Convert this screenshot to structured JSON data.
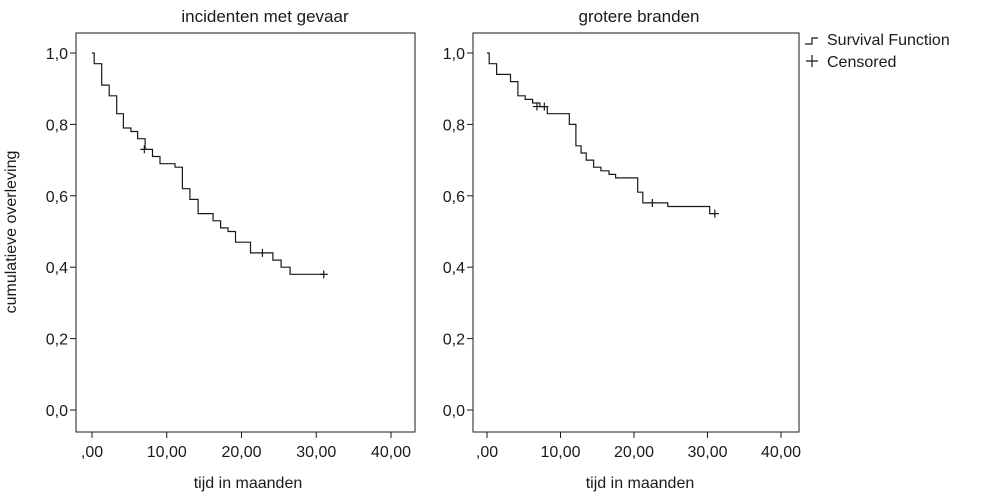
{
  "shared": {
    "ylabel": "cumulatieve overleving",
    "legend": {
      "placement": "top-right",
      "entries": [
        {
          "name": "Survival Function",
          "marker": "step"
        },
        {
          "name": "Censored",
          "marker": "plus"
        }
      ]
    },
    "colors": {
      "line": "#1a1a1a",
      "frame": "#1a1a1a",
      "background": "#ffffff"
    }
  },
  "chart_data": [
    {
      "type": "line",
      "subtype": "kaplan-meier step",
      "title": "incidenten met gevaar",
      "xlabel": "tijd in maanden",
      "ylabel": "cumulatieve overleving",
      "xlim": [
        -2.5,
        42
      ],
      "ylim": [
        -0.06,
        1.06
      ],
      "xticks": [
        0,
        10,
        20,
        30,
        40
      ],
      "xtick_labels": [
        ",00",
        "10,00",
        "20,00",
        "30,00",
        "40,00"
      ],
      "yticks": [
        0,
        0.2,
        0.4,
        0.6,
        0.8,
        1.0
      ],
      "ytick_labels": [
        "0,0",
        "0,2",
        "0,4",
        "0,6",
        "0,8",
        "1,0"
      ],
      "grid": false,
      "series": [
        {
          "name": "Survival Function",
          "x": [
            0,
            0.3,
            1.3,
            2.3,
            3.3,
            4.2,
            5.2,
            6.1,
            7.1,
            8.1,
            9.1,
            11.1,
            12.1,
            13.1,
            14.2,
            16.2,
            17.2,
            18.2,
            19.2,
            21.2,
            22.3,
            24.2,
            25.3,
            26.5,
            31.0
          ],
          "y": [
            1.0,
            0.97,
            0.91,
            0.88,
            0.83,
            0.79,
            0.78,
            0.76,
            0.73,
            0.71,
            0.69,
            0.68,
            0.62,
            0.59,
            0.55,
            0.53,
            0.51,
            0.5,
            0.47,
            0.44,
            0.44,
            0.42,
            0.4,
            0.38,
            0.38
          ]
        }
      ],
      "censored": {
        "x": [
          7.0,
          22.8,
          31.0
        ],
        "y": [
          0.73,
          0.44,
          0.38
        ]
      }
    },
    {
      "type": "line",
      "subtype": "kaplan-meier step",
      "title": "grotere branden",
      "xlabel": "tijd in maanden",
      "ylabel": "",
      "xlim": [
        -2.5,
        42
      ],
      "ylim": [
        -0.06,
        1.06
      ],
      "xticks": [
        0,
        10,
        20,
        30,
        40
      ],
      "xtick_labels": [
        ",00",
        "10,00",
        "20,00",
        "30,00",
        "40,00"
      ],
      "yticks": [
        0,
        0.2,
        0.4,
        0.6,
        0.8,
        1.0
      ],
      "ytick_labels": [
        "0,0",
        "0,2",
        "0,4",
        "0,6",
        "0,8",
        "1,0"
      ],
      "grid": false,
      "series": [
        {
          "name": "Survival Function",
          "x": [
            0,
            0.3,
            1.3,
            3.2,
            4.2,
            5.2,
            6.2,
            7.2,
            8.2,
            11.2,
            12.1,
            12.8,
            13.5,
            14.5,
            15.5,
            16.6,
            17.5,
            20.5,
            21.2,
            24.6,
            30.3,
            31.0
          ],
          "y": [
            1.0,
            0.97,
            0.94,
            0.92,
            0.88,
            0.87,
            0.86,
            0.85,
            0.83,
            0.8,
            0.74,
            0.72,
            0.7,
            0.68,
            0.67,
            0.66,
            0.65,
            0.61,
            0.58,
            0.57,
            0.55,
            0.55
          ]
        }
      ],
      "censored": {
        "x": [
          6.8,
          7.8,
          22.5,
          31.0
        ],
        "y": [
          0.85,
          0.85,
          0.58,
          0.55
        ]
      }
    }
  ]
}
